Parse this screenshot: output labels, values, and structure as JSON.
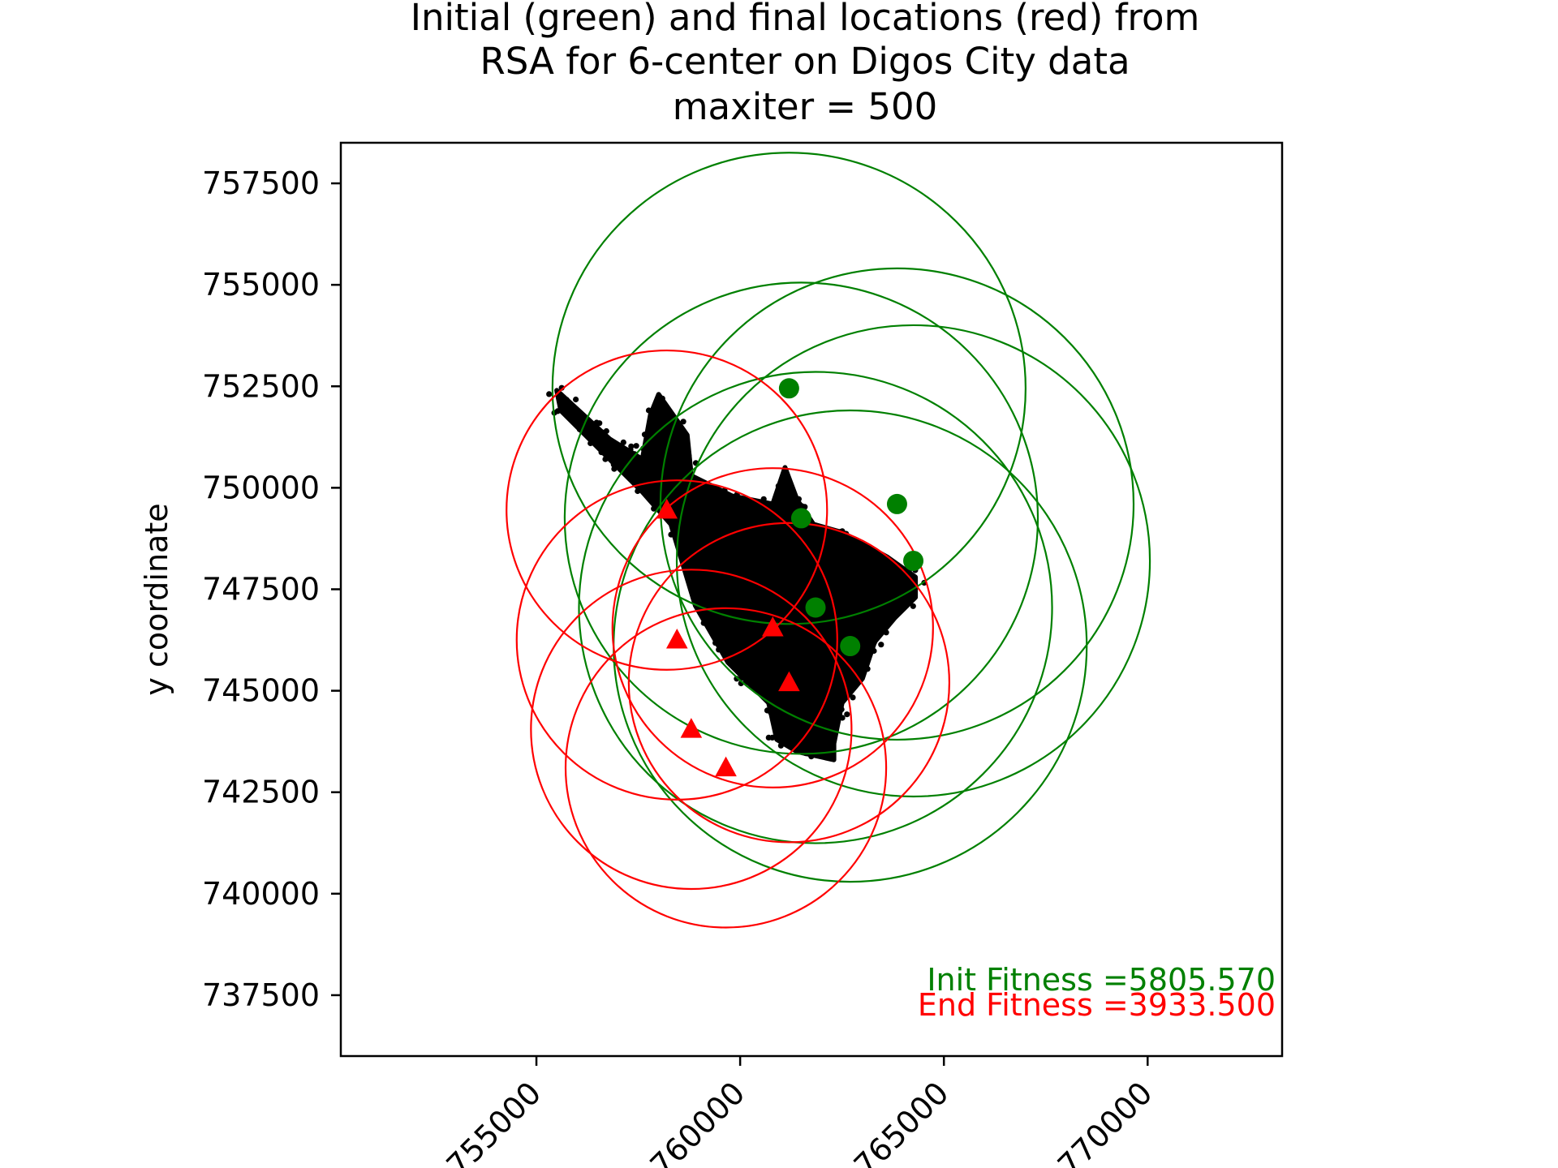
{
  "chart_data": {
    "type": "scatter",
    "title_lines": [
      "Initial (green) and final locations (red) from",
      "RSA for 6-center on Digos City data",
      "maxiter = 500"
    ],
    "xlabel": "",
    "ylabel": "y coordinate",
    "xlim": [
      750200,
      773300
    ],
    "ylim": [
      736000,
      758500
    ],
    "x_ticks": [
      755000,
      760000,
      765000,
      770000
    ],
    "x_tick_labels": [
      "755000",
      "760000",
      "765000",
      "770000"
    ],
    "y_ticks": [
      737500,
      740000,
      742500,
      745000,
      747500,
      750000,
      752500,
      755000,
      757500
    ],
    "y_tick_labels": [
      "737500",
      "740000",
      "742500",
      "745000",
      "747500",
      "750000",
      "752500",
      "755000",
      "757500"
    ],
    "grid": false,
    "colors": {
      "initial": "#008000",
      "final": "#ff0000",
      "data": "#000000"
    },
    "initial_centers": [
      {
        "x": 761200,
        "y": 752450
      },
      {
        "x": 763850,
        "y": 749600
      },
      {
        "x": 761500,
        "y": 749250
      },
      {
        "x": 764250,
        "y": 748200
      },
      {
        "x": 761850,
        "y": 747050
      },
      {
        "x": 762700,
        "y": 746100
      }
    ],
    "initial_radius": 5805.57,
    "final_centers": [
      {
        "x": 758200,
        "y": 749450
      },
      {
        "x": 760800,
        "y": 746550
      },
      {
        "x": 758450,
        "y": 746250
      },
      {
        "x": 761200,
        "y": 745200
      },
      {
        "x": 758800,
        "y": 744050
      },
      {
        "x": 759650,
        "y": 743100
      }
    ],
    "final_radius": 3933.5,
    "data_region_outline": [
      [
        755500,
        752400
      ],
      [
        756800,
        751200
      ],
      [
        757600,
        750700
      ],
      [
        757800,
        751800
      ],
      [
        758000,
        752300
      ],
      [
        758700,
        751300
      ],
      [
        758800,
        750300
      ],
      [
        759800,
        749800
      ],
      [
        760800,
        749600
      ],
      [
        761100,
        750500
      ],
      [
        761400,
        749700
      ],
      [
        761800,
        749100
      ],
      [
        762500,
        748900
      ],
      [
        763600,
        748300
      ],
      [
        764300,
        747800
      ],
      [
        764300,
        747300
      ],
      [
        763800,
        746800
      ],
      [
        763300,
        746200
      ],
      [
        763000,
        745300
      ],
      [
        762500,
        744700
      ],
      [
        762300,
        743700
      ],
      [
        762300,
        743300
      ],
      [
        761400,
        743500
      ],
      [
        760900,
        743800
      ],
      [
        760700,
        744700
      ],
      [
        759700,
        745700
      ],
      [
        759300,
        746400
      ],
      [
        758900,
        747100
      ],
      [
        758600,
        748100
      ],
      [
        758300,
        749100
      ],
      [
        757600,
        749900
      ],
      [
        756700,
        750800
      ],
      [
        755600,
        751900
      ]
    ],
    "text_annotations": [
      {
        "text": "Init Fitness =5805.570",
        "color": "#008000"
      },
      {
        "text": "End Fitness =3933.500",
        "color": "#ff0000"
      }
    ]
  }
}
